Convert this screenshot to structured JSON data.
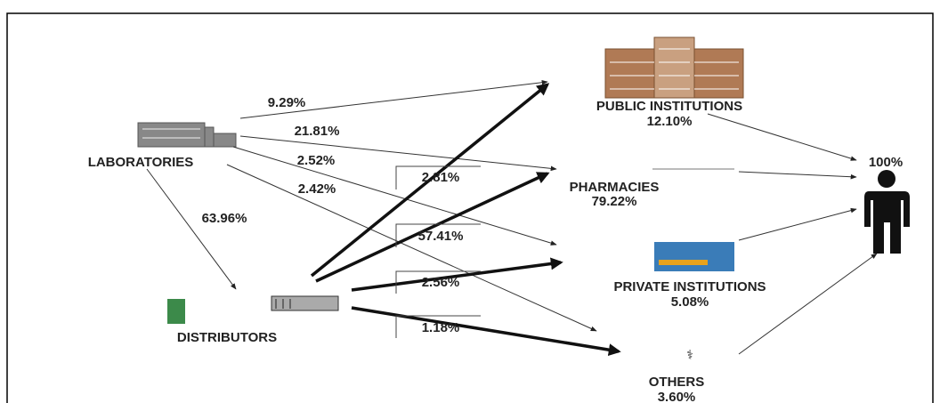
{
  "nodes": [
    {
      "label": "LABORATORIES"
    },
    {
      "label": "DISTRIBUTORS"
    },
    {
      "label": "PUBLIC INSTITUTIONS",
      "share": "12.10%"
    },
    {
      "label": "PHARMACIES",
      "share": "79.22%"
    },
    {
      "label": "PRIVATE INSTITUTIONS",
      "share": "5.08%"
    },
    {
      "label": "OTHERS",
      "share": "3.60%"
    },
    {
      "share": "100%"
    }
  ],
  "flows": {
    "laboratories": [
      "9.29%",
      "21.81%",
      "2.52%",
      "2.42%",
      "63.96%"
    ],
    "distributors": [
      "2.81%",
      "57.41%",
      "2.56%",
      "1.18%"
    ]
  }
}
